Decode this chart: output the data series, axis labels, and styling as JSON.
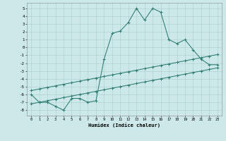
{
  "xlabel": "Humidex (Indice chaleur)",
  "bg_color": "#cce8e8",
  "line_color": "#2e7d6e",
  "grid_color": "#aacccc",
  "xlim": [
    -0.5,
    23.5
  ],
  "ylim": [
    -8.7,
    5.7
  ],
  "xticks": [
    0,
    1,
    2,
    3,
    4,
    5,
    6,
    7,
    8,
    9,
    10,
    11,
    12,
    13,
    14,
    15,
    16,
    17,
    18,
    19,
    20,
    21,
    22,
    23
  ],
  "yticks": [
    -8,
    -7,
    -6,
    -5,
    -4,
    -3,
    -2,
    -1,
    0,
    1,
    2,
    3,
    4,
    5
  ],
  "main_x": [
    0,
    1,
    2,
    3,
    4,
    5,
    6,
    7,
    8,
    9,
    10,
    11,
    12,
    13,
    14,
    15,
    16,
    17,
    18,
    19,
    20,
    21,
    22,
    23
  ],
  "main_y": [
    -6.0,
    -7.0,
    -7.0,
    -7.5,
    -8.0,
    -6.5,
    -6.5,
    -7.0,
    -6.8,
    -1.5,
    1.8,
    2.1,
    3.2,
    5.0,
    3.5,
    5.0,
    4.5,
    1.0,
    0.5,
    1.0,
    -0.3,
    -1.5,
    -2.2,
    -2.2
  ],
  "diag_upper_x": [
    0,
    1,
    2,
    3,
    4,
    5,
    6,
    7,
    8,
    9,
    10,
    11,
    12,
    13,
    14,
    15,
    16,
    17,
    18,
    19,
    20,
    21,
    22,
    23
  ],
  "diag_upper_y": [
    -5.5,
    -5.3,
    -5.1,
    -4.9,
    -4.7,
    -4.5,
    -4.3,
    -4.1,
    -3.9,
    -3.7,
    -3.5,
    -3.3,
    -3.1,
    -2.9,
    -2.7,
    -2.5,
    -2.3,
    -2.1,
    -1.9,
    -1.7,
    -1.5,
    -1.3,
    -1.1,
    -0.9
  ],
  "diag_lower_x": [
    0,
    1,
    2,
    3,
    4,
    5,
    6,
    7,
    8,
    9,
    10,
    11,
    12,
    13,
    14,
    15,
    16,
    17,
    18,
    19,
    20,
    21,
    22,
    23
  ],
  "diag_lower_y": [
    -7.2,
    -7.0,
    -6.8,
    -6.6,
    -6.4,
    -6.2,
    -6.0,
    -5.8,
    -5.6,
    -5.4,
    -5.2,
    -5.0,
    -4.8,
    -4.6,
    -4.4,
    -4.2,
    -4.0,
    -3.8,
    -3.6,
    -3.4,
    -3.2,
    -3.0,
    -2.8,
    -2.6
  ]
}
